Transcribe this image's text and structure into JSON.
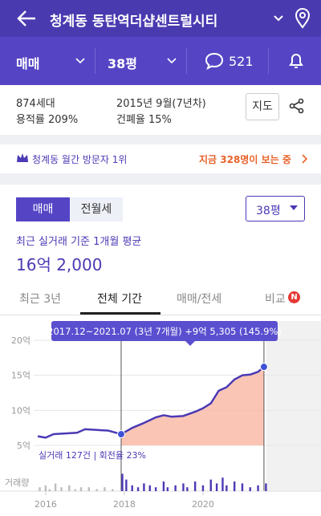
{
  "header": {
    "title": "청계동 동탄역더샵센트럴시티"
  },
  "filters": {
    "deal": "매매",
    "size": "38평",
    "comments": "521"
  },
  "info": {
    "households": "874세대",
    "far": "용적률 209%",
    "built": "2015년 9월(7년차)",
    "bcr": "건폐율 15%",
    "map_button": "지도"
  },
  "banner": {
    "rank": "청계동 월간 방문자 1위",
    "viewers": "지금 328명이 보는 중"
  },
  "price": {
    "toggle": [
      "매매",
      "전월세"
    ],
    "size": "38평",
    "caption": "최근 실거래 기준 1개월 평균",
    "value": "16억 2,000"
  },
  "tabs": [
    "최근 3년",
    "전체 기간",
    "매매/전세",
    "비교"
  ],
  "badge": "N",
  "chart_data": {
    "type": "line",
    "tooltip": "2017.12~2021.07 (3년 7개월) +9억 5,305 (145.9%)",
    "stats": "실거래 127건 | 회전율 23%",
    "volume_label": "거래량",
    "x": [
      2015.8,
      2016.0,
      2016.2,
      2016.5,
      2016.8,
      2017.0,
      2017.3,
      2017.6,
      2017.92,
      2018.2,
      2018.5,
      2018.8,
      2019.0,
      2019.2,
      2019.5,
      2019.8,
      2020.0,
      2020.2,
      2020.4,
      2020.6,
      2020.8,
      2021.0,
      2021.2,
      2021.4,
      2021.55
    ],
    "values": [
      6.3,
      6.1,
      6.6,
      6.7,
      6.8,
      7.3,
      7.2,
      7.1,
      6.6,
      7.5,
      8.2,
      9.0,
      9.3,
      9.1,
      9.2,
      9.8,
      10.3,
      11.0,
      12.8,
      13.3,
      14.4,
      15.0,
      15.1,
      15.5,
      16.2
    ],
    "color": "#4a3ab5",
    "fill_color": "#f9bba8",
    "highlight_x": [
      2017.92,
      2021.55
    ],
    "xlim": [
      2014.84,
      2023.0
    ],
    "xticks": [
      2016,
      2018,
      2020
    ],
    "ylim": [
      5,
      20
    ],
    "yticks": [
      {
        "value": 5,
        "label": "5억"
      },
      {
        "value": 10,
        "label": "10억"
      },
      {
        "value": 15,
        "label": "15억"
      },
      {
        "value": 20,
        "label": "20억"
      }
    ],
    "grid": true,
    "volume": {
      "x": [
        2015.85,
        2016.0,
        2016.1,
        2016.25,
        2016.4,
        2016.6,
        2016.75,
        2016.9,
        2017.1,
        2017.3,
        2017.5,
        2017.7,
        2017.95,
        2018.05,
        2018.2,
        2018.35,
        2018.5,
        2018.65,
        2018.8,
        2019.0,
        2019.1,
        2019.3,
        2019.5,
        2019.6,
        2019.8,
        2020.0,
        2020.2,
        2020.35,
        2020.5,
        2020.6,
        2020.8,
        2021.0,
        2021.2,
        2021.4,
        2021.6
      ],
      "values": [
        2,
        3,
        1,
        4,
        2,
        3,
        1,
        2,
        2,
        1,
        2,
        1,
        9,
        6,
        3,
        2,
        4,
        3,
        2,
        5,
        2,
        3,
        4,
        2,
        5,
        3,
        6,
        4,
        7,
        3,
        5,
        4,
        2,
        3,
        4
      ],
      "ylim": [
        0,
        10
      ],
      "colors": [
        "#bdbdbd",
        "#4a3ab5"
      ]
    }
  }
}
